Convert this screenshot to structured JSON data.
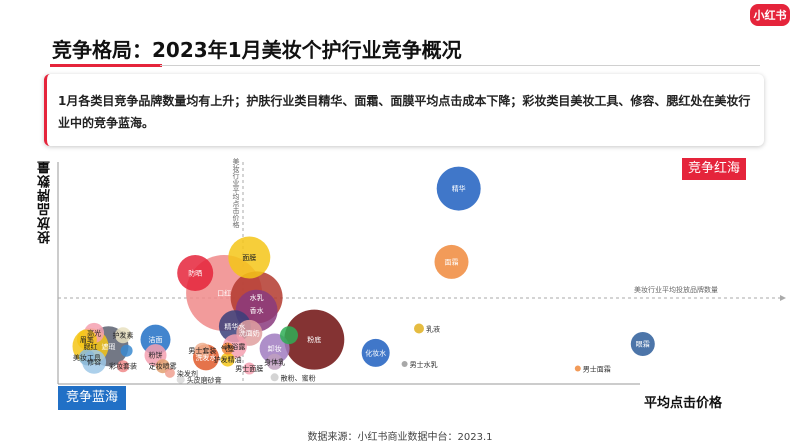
{
  "logo": "小红书",
  "title": "竞争格局：2023年1月美妆个护行业竞争概况",
  "summary": "1月各类目竞争品牌数量均有上升；护肤行业类目精华、面霜、面膜平均点击成本下降；彩妆类目美妆工具、修容、腮红处在美妆行业中的竞争蓝海。",
  "source": "数据来源：小红书商业数据中台：2023.1",
  "corner_labels": {
    "red_ocean": "竞争红海",
    "blue_ocean": "竞争蓝海"
  },
  "colors": {
    "accent": "#e5243b",
    "blue": "#2170c6"
  },
  "chart_data": {
    "type": "scatter",
    "xlabel": "平均点击价格",
    "ylabel": "投放品牌数量",
    "reference_lines": {
      "vertical_label": "美妆行业平均点击价格",
      "horizontal_label": "美妆行业平均投放品牌数量"
    },
    "points": [
      {
        "name": "精华",
        "x": 0.555,
        "y": 0.88,
        "size": 22,
        "color": "#1f5fbf",
        "label_visible": true,
        "label_color": "white"
      },
      {
        "name": "面霜",
        "x": 0.545,
        "y": 0.55,
        "size": 17,
        "color": "#f08a3c",
        "label_visible": true,
        "label_color": "white"
      },
      {
        "name": "眼霜",
        "x": 0.81,
        "y": 0.18,
        "size": 12,
        "color": "#2d5d9a",
        "label_visible": true,
        "label_color": "white"
      },
      {
        "name": "男士面霜",
        "x": 0.72,
        "y": 0.07,
        "size": 3,
        "color": "#f08a3c",
        "label_visible": true,
        "label_color": "dark"
      },
      {
        "name": "男士水乳",
        "x": 0.48,
        "y": 0.09,
        "size": 3,
        "color": "#999999",
        "label_visible": true,
        "label_color": "dark"
      },
      {
        "name": "化妆水",
        "x": 0.44,
        "y": 0.14,
        "size": 14,
        "color": "#1f5fbf",
        "label_visible": true,
        "label_color": "white"
      },
      {
        "name": "乳液",
        "x": 0.5,
        "y": 0.25,
        "size": 5,
        "color": "#e0b020",
        "label_visible": true,
        "label_color": "dark"
      },
      {
        "name": "口红",
        "x": 0.23,
        "y": 0.41,
        "size": 38,
        "color": "#f08a8a",
        "label_visible": true,
        "label_color": "white"
      },
      {
        "name": "面膜",
        "x": 0.265,
        "y": 0.57,
        "size": 21,
        "color": "#f5c518",
        "label_visible": true,
        "label_color": "dark"
      },
      {
        "name": "防晒",
        "x": 0.19,
        "y": 0.5,
        "size": 18,
        "color": "#e5243b",
        "label_visible": true,
        "label_color": "white"
      },
      {
        "name": "水乳",
        "x": 0.275,
        "y": 0.39,
        "size": 26,
        "color": "#b33a2e",
        "label_visible": true,
        "label_color": "white"
      },
      {
        "name": "香水",
        "x": 0.275,
        "y": 0.33,
        "size": 21,
        "color": "#8a3a7e",
        "label_visible": true,
        "label_color": "white"
      },
      {
        "name": "粉底",
        "x": 0.355,
        "y": 0.2,
        "size": 30,
        "color": "#6e0f0f",
        "label_visible": true,
        "label_color": "white"
      },
      {
        "name": "精华水",
        "x": 0.245,
        "y": 0.26,
        "size": 16,
        "color": "#3a3f7a",
        "label_visible": true,
        "label_color": "white"
      },
      {
        "name": "洗面奶",
        "x": 0.265,
        "y": 0.23,
        "size": 13,
        "color": "#e0a0a0",
        "label_visible": true,
        "label_color": "white"
      },
      {
        "name": "遮瑕",
        "x": 0.32,
        "y": 0.22,
        "size": 9,
        "color": "#2fae56",
        "label_visible": false,
        "label_color": "white"
      },
      {
        "name": "卸妆",
        "x": 0.3,
        "y": 0.16,
        "size": 15,
        "color": "#a07bbf",
        "label_visible": true,
        "label_color": "white"
      },
      {
        "name": "沐浴露",
        "x": 0.245,
        "y": 0.17,
        "size": 12,
        "color": "#f5a0b0",
        "label_visible": true,
        "label_color": "dark"
      },
      {
        "name": "身体乳",
        "x": 0.3,
        "y": 0.1,
        "size": 8,
        "color": "#c0a0c0",
        "label_visible": true,
        "label_color": "dark"
      },
      {
        "name": "男士套装",
        "x": 0.2,
        "y": 0.15,
        "size": 8,
        "color": "#f0b090",
        "label_visible": true,
        "label_color": "dark"
      },
      {
        "name": "气垫",
        "x": 0.235,
        "y": 0.16,
        "size": 6,
        "color": "#f08a3c",
        "label_visible": true,
        "label_color": "dark"
      },
      {
        "name": "护发精油",
        "x": 0.235,
        "y": 0.11,
        "size": 7,
        "color": "#f5c518",
        "label_visible": true,
        "label_color": "dark"
      },
      {
        "name": "男士面膜",
        "x": 0.265,
        "y": 0.07,
        "size": 6,
        "color": "#f5a0b0",
        "label_visible": true,
        "label_color": "dark"
      },
      {
        "name": "散粉、蜜粉",
        "x": 0.3,
        "y": 0.03,
        "size": 4,
        "color": "#cccccc",
        "label_visible": true,
        "label_color": "dark"
      },
      {
        "name": "洗发水",
        "x": 0.205,
        "y": 0.12,
        "size": 13,
        "color": "#e05a2b",
        "label_visible": true,
        "label_color": "white"
      },
      {
        "name": "洁面",
        "x": 0.135,
        "y": 0.2,
        "size": 15,
        "color": "#2170c6",
        "label_visible": true,
        "label_color": "white"
      },
      {
        "name": "粉饼",
        "x": 0.135,
        "y": 0.13,
        "size": 11,
        "color": "#f5a0b0",
        "label_visible": true,
        "label_color": "dark"
      },
      {
        "name": "染发剂",
        "x": 0.155,
        "y": 0.05,
        "size": 5,
        "color": "#f0a090",
        "label_visible": true,
        "label_color": "dark"
      },
      {
        "name": "定妆喷雾",
        "x": 0.145,
        "y": 0.08,
        "size": 7,
        "color": "#e0a070",
        "label_visible": true,
        "label_color": "dark"
      },
      {
        "name": "头皮磨砂膏",
        "x": 0.17,
        "y": 0.02,
        "size": 4,
        "color": "#d8d8d8",
        "label_visible": true,
        "label_color": "dark"
      },
      {
        "name": "高光",
        "x": 0.05,
        "y": 0.23,
        "size": 10,
        "color": "#f5a0b0",
        "label_visible": true,
        "label_color": "dark"
      },
      {
        "name": "腮红",
        "x": 0.045,
        "y": 0.17,
        "size": 18,
        "color": "#f5c518",
        "label_visible": true,
        "label_color": "dark"
      },
      {
        "name": "修容",
        "x": 0.05,
        "y": 0.1,
        "size": 12,
        "color": "#9ec8e8",
        "label_visible": true,
        "label_color": "dark"
      },
      {
        "name": "眉笔",
        "x": 0.04,
        "y": 0.2,
        "size": 10,
        "color": "#f5c518",
        "label_visible": true,
        "label_color": "dark"
      },
      {
        "name": "遮瑕",
        "x": 0.07,
        "y": 0.17,
        "size": 20,
        "color": "#5a6070",
        "label_visible": true,
        "label_color": "white"
      },
      {
        "name": "护发素",
        "x": 0.09,
        "y": 0.22,
        "size": 8,
        "color": "#e8e0c0",
        "label_visible": true,
        "label_color": "dark"
      },
      {
        "name": "美妆工具",
        "x": 0.04,
        "y": 0.12,
        "size": 8,
        "color": "#8ab8d8",
        "label_visible": true,
        "label_color": "dark"
      },
      {
        "name": "彩妆套装",
        "x": 0.09,
        "y": 0.08,
        "size": 6,
        "color": "#f08a8a",
        "label_visible": true,
        "label_color": "dark"
      },
      {
        "name": "睫毛",
        "x": 0.095,
        "y": 0.15,
        "size": 6,
        "color": "#3a8ad0",
        "label_visible": false,
        "label_color": "dark"
      }
    ]
  }
}
